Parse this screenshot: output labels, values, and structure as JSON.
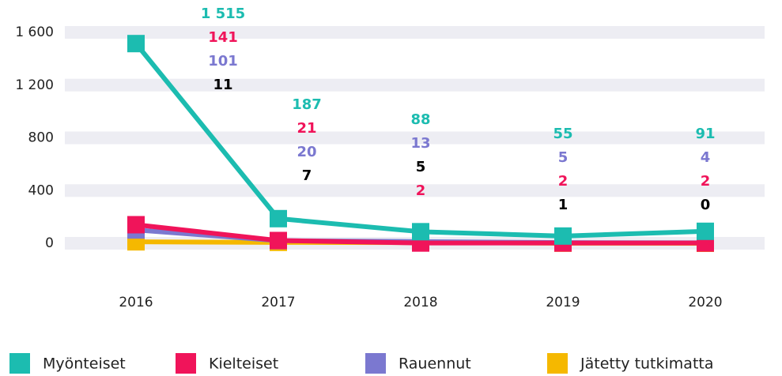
{
  "chart_data": {
    "type": "line",
    "categories": [
      "2016",
      "2017",
      "2018",
      "2019",
      "2020"
    ],
    "series": [
      {
        "name": "Myönteiset",
        "color": "#1cbcb0",
        "label_color": "#1cbcb0",
        "values": [
          1515,
          187,
          88,
          55,
          91
        ],
        "value_labels": [
          "1 515",
          "187",
          "88",
          "55",
          "91"
        ]
      },
      {
        "name": "Kielteiset",
        "color": "#f0145a",
        "label_color": "#f0145a",
        "values": [
          141,
          21,
          2,
          2,
          2
        ]
      },
      {
        "name": "Rauennut",
        "color": "#7b78d0",
        "label_color": "#7b78d0",
        "values": [
          101,
          20,
          13,
          5,
          4
        ]
      },
      {
        "name": "Jätetty tutkimatta",
        "color": "#f5b800",
        "label_color": "#000000",
        "values": [
          11,
          7,
          5,
          1,
          0
        ]
      }
    ],
    "ylim": [
      0,
      1600
    ],
    "yticks": [
      0,
      400,
      800,
      {
        "value": 1200,
        "label": "1 200"
      },
      {
        "value": 1600,
        "label": "1 600"
      }
    ],
    "grid": true
  }
}
